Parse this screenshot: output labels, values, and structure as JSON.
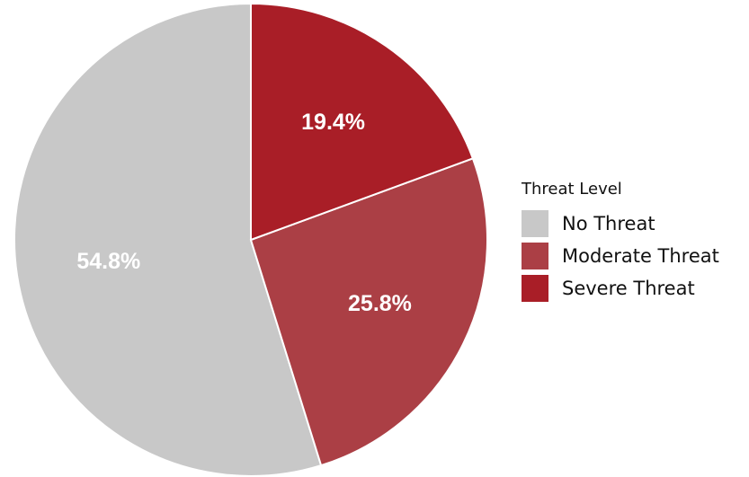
{
  "chart_data": {
    "type": "pie",
    "categories": [
      "No Threat",
      "Moderate Threat",
      "Severe Threat"
    ],
    "values": [
      54.8,
      25.8,
      19.4
    ],
    "value_labels": [
      "54.8%",
      "25.8%",
      "19.4%"
    ],
    "colors": [
      "#c8c8c8",
      "#ab3f45",
      "#a91e27"
    ],
    "start": "12 o'clock",
    "direction": "counter-clockwise",
    "legend": {
      "title": "Threat Level",
      "placement": "right",
      "entries": [
        "No Threat",
        "Moderate Threat",
        "Severe Threat"
      ]
    }
  }
}
